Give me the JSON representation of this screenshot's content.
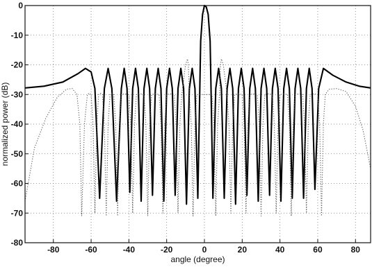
{
  "chart_data": {
    "type": "line",
    "xlabel": "angle (degree)",
    "ylabel": "normalized power (dB)",
    "xlim": [
      -95,
      88
    ],
    "ylim": [
      -80,
      0
    ],
    "xticks": [
      -80,
      -60,
      -40,
      -20,
      0,
      20,
      40,
      60,
      80
    ],
    "yticks": [
      0,
      -10,
      -20,
      -30,
      -40,
      -50,
      -60,
      -70,
      -80
    ],
    "xtick_labels": [
      "-80",
      "-60",
      "-40",
      "-20",
      "0",
      "20",
      "40",
      "60",
      "80"
    ],
    "ytick_labels": [
      "0",
      "-10",
      "-20",
      "-30",
      "-40",
      "-50",
      "-60",
      "-70",
      "-80"
    ],
    "grid": true,
    "colors": {
      "solid": "#000000",
      "dotted": "#555555",
      "grid": "#777777"
    },
    "series": [
      {
        "style": "solid",
        "points": [
          [
            -95,
            -27.8
          ],
          [
            -85,
            -27.2
          ],
          [
            -75,
            -25.8
          ],
          [
            -67,
            -23.0
          ],
          [
            -63,
            -21.2
          ],
          [
            -60,
            -22.4
          ],
          [
            -58,
            -28
          ],
          [
            -55.5,
            -65
          ],
          [
            -53,
            -28
          ],
          [
            -51,
            -21.2
          ],
          [
            -49,
            -28
          ],
          [
            -46.5,
            -66
          ],
          [
            -44,
            -28
          ],
          [
            -42.5,
            -21.2
          ],
          [
            -41,
            -28
          ],
          [
            -39.5,
            -63
          ],
          [
            -38,
            -28
          ],
          [
            -36.5,
            -21.2
          ],
          [
            -35,
            -28
          ],
          [
            -33.5,
            -66
          ],
          [
            -32,
            -28
          ],
          [
            -30.5,
            -21.2
          ],
          [
            -29,
            -28
          ],
          [
            -27.5,
            -64
          ],
          [
            -26,
            -28
          ],
          [
            -24.5,
            -21.2
          ],
          [
            -23,
            -28
          ],
          [
            -21.5,
            -66
          ],
          [
            -20,
            -28
          ],
          [
            -18.5,
            -21.2
          ],
          [
            -17,
            -28
          ],
          [
            -15.5,
            -64
          ],
          [
            -14,
            -28
          ],
          [
            -12.5,
            -21.2
          ],
          [
            -11,
            -28
          ],
          [
            -9.5,
            -67
          ],
          [
            -8,
            -28
          ],
          [
            -6.5,
            -21.2
          ],
          [
            -5,
            -28
          ],
          [
            -3.5,
            -65
          ],
          [
            -2.5,
            -30
          ],
          [
            -2,
            -12
          ],
          [
            -1,
            -3
          ],
          [
            0,
            0
          ],
          [
            1,
            -0.5
          ],
          [
            2,
            -3
          ],
          [
            3,
            -12
          ],
          [
            3.5,
            -28
          ],
          [
            4.5,
            -65
          ],
          [
            6,
            -28
          ],
          [
            7.5,
            -21.2
          ],
          [
            9,
            -28
          ],
          [
            10.5,
            -65
          ],
          [
            12,
            -28
          ],
          [
            13.5,
            -21.2
          ],
          [
            15,
            -28
          ],
          [
            16.5,
            -67
          ],
          [
            18,
            -28
          ],
          [
            19.5,
            -21.2
          ],
          [
            21,
            -28
          ],
          [
            22.5,
            -64
          ],
          [
            24,
            -28
          ],
          [
            25.5,
            -21.2
          ],
          [
            27,
            -28
          ],
          [
            28.5,
            -66
          ],
          [
            30,
            -28
          ],
          [
            31.5,
            -21.2
          ],
          [
            33,
            -28
          ],
          [
            34.5,
            -64
          ],
          [
            36,
            -28
          ],
          [
            37.5,
            -21.2
          ],
          [
            39,
            -28
          ],
          [
            40.5,
            -66
          ],
          [
            42,
            -28
          ],
          [
            43.5,
            -21.2
          ],
          [
            45,
            -28
          ],
          [
            46.5,
            -65
          ],
          [
            48,
            -28
          ],
          [
            49.5,
            -21.2
          ],
          [
            51,
            -28
          ],
          [
            52.5,
            -65
          ],
          [
            54,
            -28
          ],
          [
            55.5,
            -21.2
          ],
          [
            57,
            -28
          ],
          [
            58.5,
            -62
          ],
          [
            60.5,
            -28
          ],
          [
            63,
            -21.2
          ],
          [
            68,
            -23.5
          ],
          [
            75,
            -25.8
          ],
          [
            82,
            -27.2
          ],
          [
            88,
            -27.8
          ]
        ]
      },
      {
        "style": "dotted",
        "points": [
          [
            -95,
            -66
          ],
          [
            -90,
            -48
          ],
          [
            -84,
            -38
          ],
          [
            -78,
            -31
          ],
          [
            -73,
            -28.2
          ],
          [
            -70,
            -28
          ],
          [
            -67.5,
            -30
          ],
          [
            -66,
            -40
          ],
          [
            -65,
            -71
          ],
          [
            -63.5,
            -40
          ],
          [
            -62,
            -30
          ],
          [
            -61,
            -29.6
          ],
          [
            -60,
            -30
          ],
          [
            -59,
            -40
          ],
          [
            -58,
            -70
          ],
          [
            -57,
            -40
          ],
          [
            -56,
            -30
          ],
          [
            -55,
            -29.6
          ],
          [
            -54,
            -30
          ],
          [
            -53,
            -40
          ],
          [
            -52,
            -71
          ],
          [
            -51,
            -40
          ],
          [
            -50,
            -30
          ],
          [
            -49,
            -29.6
          ],
          [
            -48,
            -30
          ],
          [
            -47,
            -40
          ],
          [
            -46,
            -71
          ],
          [
            -45,
            -40
          ],
          [
            -44,
            -30
          ],
          [
            -42,
            -29.8
          ],
          [
            -40,
            -30
          ],
          [
            -39,
            -40
          ],
          [
            -38,
            -70
          ],
          [
            -37,
            -40
          ],
          [
            -36,
            -30
          ],
          [
            -34,
            -29.8
          ],
          [
            -32,
            -30
          ],
          [
            -31,
            -40
          ],
          [
            -30,
            -71
          ],
          [
            -29,
            -40
          ],
          [
            -28,
            -30
          ],
          [
            -26,
            -29.8
          ],
          [
            -24,
            -30
          ],
          [
            -23,
            -40
          ],
          [
            -22,
            -70
          ],
          [
            -21,
            -40
          ],
          [
            -20,
            -30
          ],
          [
            -18,
            -29.8
          ],
          [
            -16,
            -30
          ],
          [
            -15,
            -40
          ],
          [
            -14,
            -70
          ],
          [
            -13,
            -40
          ],
          [
            -12,
            -30
          ],
          [
            -11,
            -25
          ],
          [
            -10,
            -20
          ],
          [
            -9,
            -18
          ],
          [
            -8.5,
            -20
          ],
          [
            -8,
            -30
          ],
          [
            -7,
            -40
          ],
          [
            -6,
            -71
          ],
          [
            -5,
            -40
          ],
          [
            -4,
            -30
          ],
          [
            4,
            -30
          ],
          [
            5,
            -40
          ],
          [
            6,
            -71
          ],
          [
            7,
            -40
          ],
          [
            8,
            -30
          ],
          [
            8.5,
            -20
          ],
          [
            9,
            -18
          ],
          [
            10,
            -20
          ],
          [
            11,
            -25
          ],
          [
            12,
            -30
          ],
          [
            13,
            -40
          ],
          [
            14,
            -70
          ],
          [
            15,
            -40
          ],
          [
            16,
            -30
          ],
          [
            18,
            -29.8
          ],
          [
            20,
            -30
          ],
          [
            21,
            -40
          ],
          [
            22,
            -70
          ],
          [
            23,
            -40
          ],
          [
            24,
            -30
          ],
          [
            26,
            -29.8
          ],
          [
            28,
            -30
          ],
          [
            29,
            -40
          ],
          [
            30,
            -71
          ],
          [
            31,
            -40
          ],
          [
            32,
            -30
          ],
          [
            34,
            -29.8
          ],
          [
            36,
            -30
          ],
          [
            37,
            -40
          ],
          [
            38,
            -70
          ],
          [
            39,
            -40
          ],
          [
            40,
            -30
          ],
          [
            42,
            -29.8
          ],
          [
            44,
            -30
          ],
          [
            45,
            -40
          ],
          [
            46,
            -71
          ],
          [
            47,
            -40
          ],
          [
            48,
            -30
          ],
          [
            50,
            -29.8
          ],
          [
            52,
            -30
          ],
          [
            53,
            -40
          ],
          [
            54,
            -70
          ],
          [
            55,
            -40
          ],
          [
            56,
            -30
          ],
          [
            58,
            -29.8
          ],
          [
            60,
            -30
          ],
          [
            61,
            -40
          ],
          [
            62,
            -71
          ],
          [
            63,
            -40
          ],
          [
            64,
            -30
          ],
          [
            66,
            -28.2
          ],
          [
            70,
            -28
          ],
          [
            75,
            -29
          ],
          [
            80,
            -34
          ],
          [
            84,
            -42
          ],
          [
            88,
            -55
          ]
        ]
      }
    ]
  }
}
